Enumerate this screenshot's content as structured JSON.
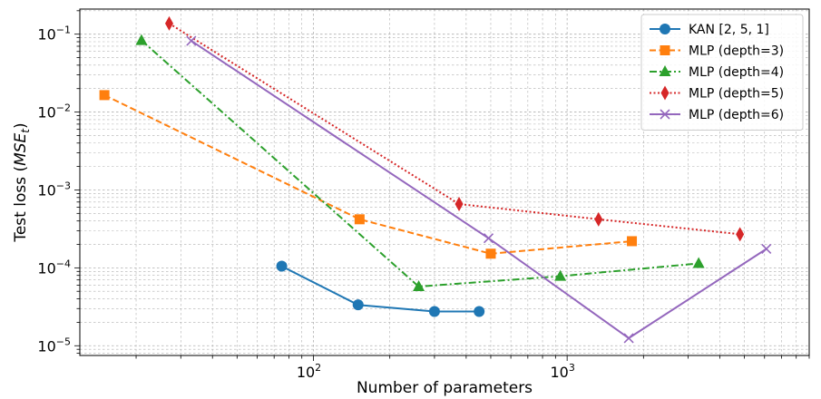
{
  "chart_data": {
    "type": "line",
    "xscale": "log",
    "yscale": "log",
    "xlabel": "Number of parameters",
    "ylabel": "Test loss (MSE",
    "ylabel_subscript": "t",
    "ylabel_close": ")",
    "xlim": [
      12,
      9000
    ],
    "ylim": [
      7.5e-06,
      0.21
    ],
    "x_major_ticks": [
      {
        "value": 100,
        "base": "10",
        "exp": "2"
      },
      {
        "value": 1000,
        "base": "10",
        "exp": "3"
      }
    ],
    "y_major_ticks": [
      {
        "value": 0.1,
        "base": "10",
        "exp": "−1"
      },
      {
        "value": 0.01,
        "base": "10",
        "exp": "−2"
      },
      {
        "value": 0.001,
        "base": "10",
        "exp": "−3"
      },
      {
        "value": 0.0001,
        "base": "10",
        "exp": "−4"
      },
      {
        "value": 1e-05,
        "base": "10",
        "exp": "−5"
      }
    ],
    "grid": true,
    "legend_position": "top-right",
    "series": [
      {
        "name": "KAN [2, 5, 1]",
        "color": "#1f77b4",
        "dash": "solid",
        "marker": "circle",
        "x": [
          75,
          150,
          300,
          450
        ],
        "y": [
          0.000105,
          3.35e-05,
          2.75e-05,
          2.75e-05
        ]
      },
      {
        "name": "MLP (depth=3)",
        "color": "#ff7f0e",
        "dash": "dashed",
        "marker": "square",
        "x": [
          15,
          152,
          500,
          1800
        ],
        "y": [
          0.0165,
          0.00042,
          0.000152,
          0.00022
        ]
      },
      {
        "name": "MLP (depth=4)",
        "color": "#2ca02c",
        "dash": "dashdot",
        "marker": "triangle",
        "x": [
          21,
          260,
          940,
          3300
        ],
        "y": [
          0.083,
          5.75e-05,
          7.8e-05,
          0.000114
        ]
      },
      {
        "name": "MLP (depth=5)",
        "color": "#d62728",
        "dash": "dotted",
        "marker": "diamond",
        "x": [
          27,
          375,
          1330,
          4800
        ],
        "y": [
          0.137,
          0.00066,
          0.00042,
          0.00027
        ]
      },
      {
        "name": "MLP (depth=6)",
        "color": "#9467bd",
        "dash": "solid",
        "marker": "x",
        "x": [
          33,
          490,
          1750,
          6100
        ],
        "y": [
          0.082,
          0.00024,
          1.25e-05,
          0.000175
        ]
      }
    ]
  }
}
